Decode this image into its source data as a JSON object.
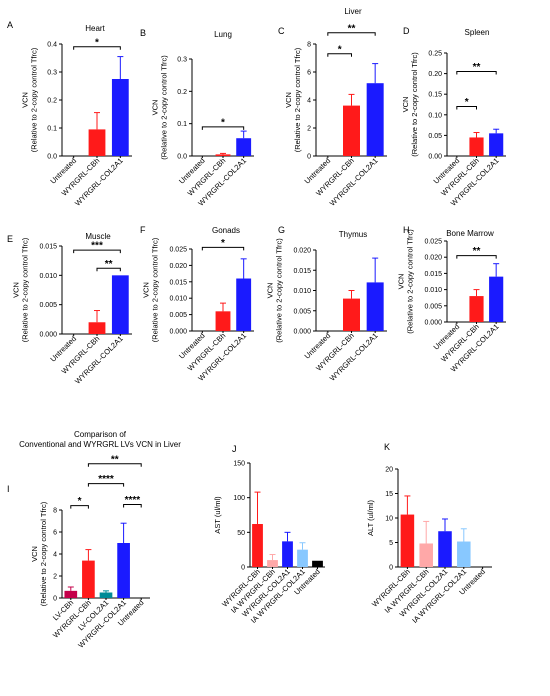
{
  "chart_data": [
    {
      "id": "A",
      "type": "bar",
      "panel_label": "A",
      "title": "Heart",
      "ylabel": "VCN\n(Relative to 2-copy control Tfrc)",
      "ylim": [
        0,
        0.4
      ],
      "yticks": [
        {
          "v": 0,
          "t": "0.0"
        },
        {
          "v": 0.1,
          "t": "0.1"
        },
        {
          "v": 0.2,
          "t": "0.2"
        },
        {
          "v": 0.3,
          "t": "0.3"
        },
        {
          "v": 0.4,
          "t": "0.4"
        }
      ],
      "categories": [
        "Untreated",
        "WYRGRL-CBh",
        "WYRGRL-COL2A1"
      ],
      "values": [
        0,
        0.095,
        0.275
      ],
      "errors": [
        0,
        0.06,
        0.08
      ],
      "colors": [
        "#000000",
        "#ff1a1a",
        "#1a1aff"
      ],
      "significance": [
        {
          "from": 0,
          "to": 2,
          "label": "*",
          "y": 0.39
        }
      ]
    },
    {
      "id": "B",
      "type": "bar",
      "panel_label": "B",
      "title": "Lung",
      "ylabel": "VCN\n(Relative to 2-copy control Tfrc)",
      "ylim": [
        0,
        0.3
      ],
      "yticks": [
        {
          "v": 0,
          "t": "0.0"
        },
        {
          "v": 0.1,
          "t": "0.1"
        },
        {
          "v": 0.2,
          "t": "0.2"
        },
        {
          "v": 0.3,
          "t": "0.3"
        }
      ],
      "categories": [
        "Untreated",
        "WYRGRL-CBh",
        "WYRGRL-COL2A1"
      ],
      "values": [
        0,
        0.005,
        0.055
      ],
      "errors": [
        0,
        0.003,
        0.022
      ],
      "colors": [
        "#000000",
        "#ff1a1a",
        "#1a1aff"
      ],
      "significance": [
        {
          "from": 0,
          "to": 2,
          "label": "*",
          "y": 0.09
        }
      ]
    },
    {
      "id": "C",
      "type": "bar",
      "panel_label": "C",
      "title": "Liver",
      "ylabel": "VCN\n(Relative to 2-copy control Tfrc)",
      "ylim": [
        0,
        8
      ],
      "yticks": [
        {
          "v": 0,
          "t": "0"
        },
        {
          "v": 2,
          "t": "2"
        },
        {
          "v": 4,
          "t": "4"
        },
        {
          "v": 6,
          "t": "6"
        },
        {
          "v": 8,
          "t": "8"
        }
      ],
      "categories": [
        "Untreated",
        "WYRGRL-CBh",
        "WYRGRL-COL2A1"
      ],
      "values": [
        0,
        3.6,
        5.2
      ],
      "errors": [
        0,
        0.8,
        1.4
      ],
      "colors": [
        "#000000",
        "#ff1a1a",
        "#1a1aff"
      ],
      "significance": [
        {
          "from": 0,
          "to": 1,
          "label": "*",
          "y": 7.3
        },
        {
          "from": 0,
          "to": 2,
          "label": "**",
          "y": 8.8
        }
      ]
    },
    {
      "id": "D",
      "type": "bar",
      "panel_label": "D",
      "title": "Spleen",
      "ylabel": "VCN\n(Relative to 2-copy control Tfrc)",
      "ylim": [
        0,
        0.25
      ],
      "yticks": [
        {
          "v": 0,
          "t": "0.00"
        },
        {
          "v": 0.05,
          "t": "0.05"
        },
        {
          "v": 0.1,
          "t": "0.10"
        },
        {
          "v": 0.15,
          "t": "0.15"
        },
        {
          "v": 0.2,
          "t": "0.20"
        },
        {
          "v": 0.25,
          "t": "0.25"
        }
      ],
      "categories": [
        "Untreated",
        "WYRGRL-CBh",
        "WYRGRL-COL2A1"
      ],
      "values": [
        0,
        0.045,
        0.055
      ],
      "errors": [
        0,
        0.012,
        0.01
      ],
      "colors": [
        "#000000",
        "#ff1a1a",
        "#1a1aff"
      ],
      "significance": [
        {
          "from": 0,
          "to": 1,
          "label": "*",
          "y": 0.12
        },
        {
          "from": 0,
          "to": 2,
          "label": "**",
          "y": 0.205
        }
      ]
    },
    {
      "id": "E",
      "type": "bar",
      "panel_label": "E",
      "title": "Muscle",
      "ylabel": "VCN\n(Relative to 2-copy control Tfrc)",
      "ylim": [
        0,
        0.015
      ],
      "yticks": [
        {
          "v": 0,
          "t": "0.000"
        },
        {
          "v": 0.005,
          "t": "0.005"
        },
        {
          "v": 0.01,
          "t": "0.010"
        },
        {
          "v": 0.015,
          "t": "0.015"
        }
      ],
      "categories": [
        "Untreated",
        "WYRGRL-CBh",
        "WYRGRL-COL2A1"
      ],
      "values": [
        0,
        0.002,
        0.01
      ],
      "errors": [
        0,
        0.002,
        0
      ],
      "colors": [
        "#000000",
        "#ff1a1a",
        "#1a1aff"
      ],
      "significance": [
        {
          "from": 1,
          "to": 2,
          "label": "**",
          "y": 0.0112
        },
        {
          "from": 0,
          "to": 2,
          "label": "***",
          "y": 0.0143
        }
      ]
    },
    {
      "id": "F",
      "type": "bar",
      "panel_label": "F",
      "title": "Gonads",
      "ylabel": "VCN\n(Relative to 2-copy control Tfrc)",
      "ylim": [
        0,
        0.025
      ],
      "yticks": [
        {
          "v": 0,
          "t": "0.000"
        },
        {
          "v": 0.005,
          "t": "0.005"
        },
        {
          "v": 0.01,
          "t": "0.010"
        },
        {
          "v": 0.015,
          "t": "0.015"
        },
        {
          "v": 0.02,
          "t": "0.020"
        },
        {
          "v": 0.025,
          "t": "0.025"
        }
      ],
      "categories": [
        "Untreated",
        "WYRGRL-CBh",
        "WYRGRL-COL2A1"
      ],
      "values": [
        0,
        0.006,
        0.016
      ],
      "errors": [
        0,
        0.0025,
        0.006
      ],
      "colors": [
        "#000000",
        "#ff1a1a",
        "#1a1aff"
      ],
      "significance": [
        {
          "from": 0,
          "to": 2,
          "label": "*",
          "y": 0.0255
        }
      ]
    },
    {
      "id": "G",
      "type": "bar",
      "panel_label": "G",
      "title": "Thymus",
      "ylabel": "VCN\n(Relative to 2-copy control Tfrc)",
      "ylim": [
        0,
        0.02
      ],
      "yticks": [
        {
          "v": 0,
          "t": "0.000"
        },
        {
          "v": 0.005,
          "t": "0.005"
        },
        {
          "v": 0.01,
          "t": "0.010"
        },
        {
          "v": 0.015,
          "t": "0.015"
        },
        {
          "v": 0.02,
          "t": "0.020"
        }
      ],
      "categories": [
        "Untreated",
        "WYRGRL-CBh",
        "WYRGRL-COL2A1"
      ],
      "values": [
        0,
        0.008,
        0.012
      ],
      "errors": [
        0,
        0.002,
        0.006
      ],
      "colors": [
        "#000000",
        "#ff1a1a",
        "#1a1aff"
      ],
      "significance": []
    },
    {
      "id": "H",
      "type": "bar",
      "panel_label": "H",
      "title": "Bone Marrow",
      "ylabel": "VCN\n(Relative to 2-copy control Tfrc)",
      "ylim": [
        0,
        0.025
      ],
      "yticks": [
        {
          "v": 0,
          "t": "0.000"
        },
        {
          "v": 0.005,
          "t": "0.005"
        },
        {
          "v": 0.01,
          "t": "0.010"
        },
        {
          "v": 0.015,
          "t": "0.015"
        },
        {
          "v": 0.02,
          "t": "0.020"
        },
        {
          "v": 0.025,
          "t": "0.025"
        }
      ],
      "categories": [
        "Untreated",
        "WYRGRL-CBh",
        "WYRGRL-COL2A1"
      ],
      "values": [
        0,
        0.008,
        0.014
      ],
      "errors": [
        0,
        0.002,
        0.004
      ],
      "colors": [
        "#000000",
        "#ff1a1a",
        "#1a1aff"
      ],
      "significance": [
        {
          "from": 0,
          "to": 2,
          "label": "**",
          "y": 0.0205
        }
      ]
    },
    {
      "id": "I",
      "type": "bar",
      "panel_label": "I",
      "title": "Comparison of\nConventional and WYRGRL LVs VCN in Liver",
      "ylabel": "VCN\n(Relative to 2-copy control Tfrc)",
      "ylim": [
        0,
        8
      ],
      "yticks": [
        {
          "v": 0,
          "t": "0"
        },
        {
          "v": 2,
          "t": "2"
        },
        {
          "v": 4,
          "t": "4"
        },
        {
          "v": 6,
          "t": "6"
        },
        {
          "v": 8,
          "t": "8"
        }
      ],
      "categories": [
        "LV-CBh",
        "WYRGRL-CBh",
        "LV-COL2A1",
        "WYRGRL-COL2A1",
        "Untreated"
      ],
      "values": [
        0.65,
        3.4,
        0.5,
        5.0,
        0
      ],
      "errors": [
        0.35,
        1.0,
        0.15,
        1.8,
        0
      ],
      "colors": [
        "#c4004a",
        "#ff1a1a",
        "#008b96",
        "#1a1aff",
        "#000000"
      ],
      "significance": [
        {
          "from": 0,
          "to": 1,
          "label": "*",
          "y": 8.4
        },
        {
          "from": 3,
          "to": 4,
          "label": "****",
          "y": 8.5
        },
        {
          "from": 1,
          "to": 3,
          "label": "****",
          "y": 10.4
        },
        {
          "from": 1,
          "to": 4,
          "label": "**",
          "y": 12.2
        }
      ]
    },
    {
      "id": "J",
      "type": "bar",
      "panel_label": "J",
      "ylabel": "AST (ul/ml)",
      "ylim": [
        0,
        150
      ],
      "yticks": [
        {
          "v": 0,
          "t": "0"
        },
        {
          "v": 50,
          "t": "50"
        },
        {
          "v": 100,
          "t": "100"
        },
        {
          "v": 150,
          "t": "150"
        }
      ],
      "categories": [
        "WYRGRL-CBh",
        "IA WYRGRL-CBh",
        "WYRGRL-COL2A1",
        "IA WYRGRL-COL2A1",
        "Untreated"
      ],
      "values": [
        62,
        10,
        37,
        25,
        9
      ],
      "errors": [
        46,
        8,
        13,
        10,
        0
      ],
      "colors": [
        "#ff1a1a",
        "#ffa8a8",
        "#1a1aff",
        "#88c8ff",
        "#000000"
      ],
      "significance": []
    },
    {
      "id": "K",
      "type": "bar",
      "panel_label": "K",
      "ylabel": "ALT (ul/ml)",
      "ylim": [
        0,
        20
      ],
      "yticks": [
        {
          "v": 0,
          "t": "0"
        },
        {
          "v": 5,
          "t": "5"
        },
        {
          "v": 10,
          "t": "10"
        },
        {
          "v": 15,
          "t": "15"
        },
        {
          "v": 20,
          "t": "20"
        }
      ],
      "categories": [
        "WYRGRL-CBh",
        "IA WYRGRL-CBh",
        "WYRGRL-COL2A1",
        "IA WYRGRL-COL2A1",
        "Untreated"
      ],
      "values": [
        10.7,
        4.8,
        7.3,
        5.2,
        0
      ],
      "errors": [
        3.8,
        4.5,
        2.5,
        2.6,
        0
      ],
      "colors": [
        "#ff1a1a",
        "#ffa8a8",
        "#1a1aff",
        "#88c8ff",
        "#000000"
      ],
      "significance": []
    }
  ]
}
